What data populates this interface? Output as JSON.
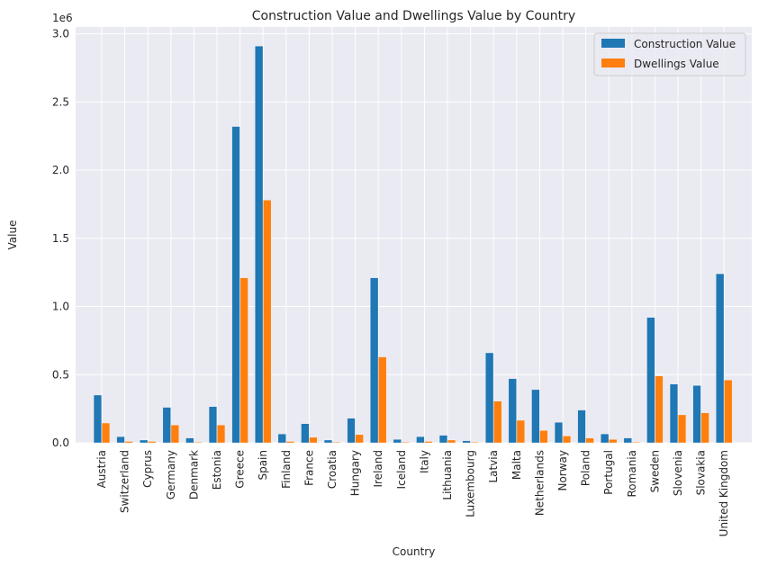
{
  "chart_data": {
    "type": "bar",
    "title": "Construction Value and Dwellings Value by Country",
    "xlabel": "Country",
    "ylabel": "Value",
    "y_multiplier_label": "1e6",
    "ylim": [
      0,
      3.05
    ],
    "yticks": [
      0.0,
      0.5,
      1.0,
      1.5,
      2.0,
      2.5,
      3.0
    ],
    "ytick_labels": [
      "0.0",
      "0.5",
      "1.0",
      "1.5",
      "2.0",
      "2.5",
      "3.0"
    ],
    "grid": true,
    "legend_position": "top-right",
    "categories": [
      "Austria",
      "Switzerland",
      "Cyprus",
      "Germany",
      "Denmark",
      "Estonia",
      "Greece",
      "Spain",
      "Finland",
      "France",
      "Croatia",
      "Hungary",
      "Ireland",
      "Iceland",
      "Italy",
      "Lithuania",
      "Luxembourg",
      "Latvia",
      "Malta",
      "Netherlands",
      "Norway",
      "Poland",
      "Portugal",
      "Romania",
      "Sweden",
      "Slovenia",
      "Slovakia",
      "United Kingdom"
    ],
    "series": [
      {
        "name": "Construction Value",
        "color": "#1f77b4",
        "values": [
          0.35,
          0.045,
          0.02,
          0.26,
          0.035,
          0.265,
          2.32,
          2.91,
          0.065,
          0.14,
          0.02,
          0.18,
          1.21,
          0.025,
          0.045,
          0.055,
          0.015,
          0.66,
          0.47,
          0.39,
          0.15,
          0.24,
          0.065,
          0.035,
          0.92,
          0.43,
          0.42,
          1.24
        ]
      },
      {
        "name": "Dwellings Value",
        "color": "#ff7f0e",
        "values": [
          0.145,
          0.01,
          0.01,
          0.13,
          0.005,
          0.13,
          1.21,
          1.78,
          0.01,
          0.04,
          0.005,
          0.06,
          0.63,
          0.005,
          0.01,
          0.02,
          0.005,
          0.305,
          0.165,
          0.09,
          0.05,
          0.035,
          0.025,
          0.005,
          0.49,
          0.205,
          0.22,
          0.46
        ]
      }
    ]
  }
}
